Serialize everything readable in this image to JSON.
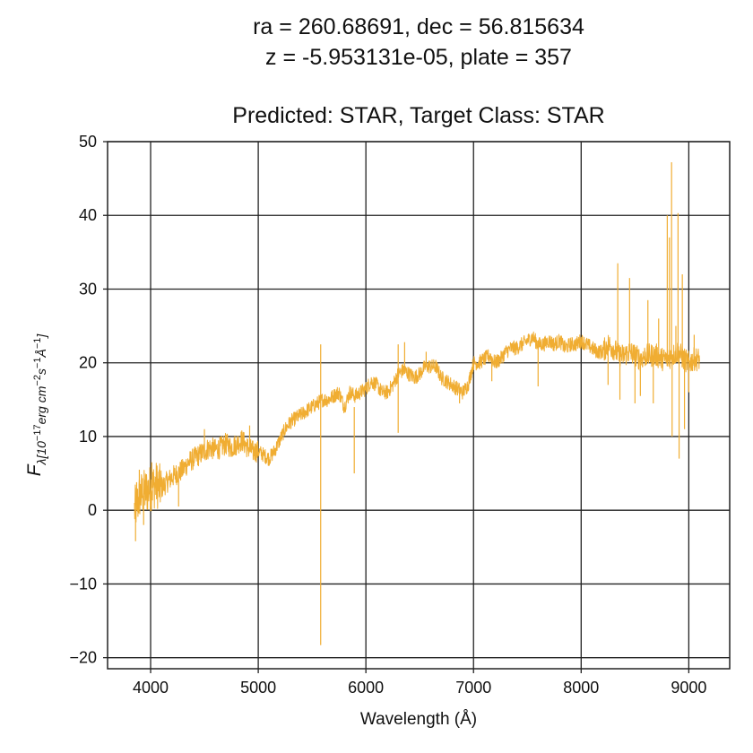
{
  "chart_data": {
    "type": "line",
    "title_lines": [
      "ra = 260.68691, dec = 56.815634",
      "z = -5.953131e-05, plate = 357"
    ],
    "subtitle": "Predicted: STAR, Target Class: STAR",
    "xlabel": "Wavelength (Å)",
    "ylabel": "F_λ[10⁻¹⁷erg cm⁻²s⁻¹Å⁻¹]",
    "ylabel_parts": {
      "main": "F",
      "sub": "λ[10",
      "exp1": "−17",
      "mid1": "erg cm",
      "exp2": "−2",
      "mid2": "s",
      "exp3": "−1",
      "mid3": "Å",
      "exp4": "−1",
      "end": "]"
    },
    "xlim": [
      3600,
      9380
    ],
    "ylim": [
      -21.5,
      50
    ],
    "x_ticks": [
      4000,
      5000,
      6000,
      7000,
      8000,
      9000
    ],
    "y_ticks": [
      -20,
      -10,
      0,
      10,
      20,
      30,
      40,
      50
    ],
    "grid": true,
    "color": "#f0ad32",
    "series": [
      {
        "x": [
          3850,
          3880,
          3900,
          3950,
          4000,
          4050,
          4100,
          4150,
          4200,
          4250,
          4300,
          4350,
          4400,
          4450,
          4500,
          4550,
          4600,
          4650,
          4700,
          4750,
          4800,
          4850,
          4900,
          4950,
          5000,
          5050,
          5100,
          5150,
          5200,
          5250,
          5300,
          5350,
          5400,
          5450,
          5500,
          5550,
          5600,
          5650,
          5700,
          5750,
          5800,
          5850,
          5900,
          5950,
          6000,
          6050,
          6100,
          6150,
          6200,
          6250,
          6300,
          6350,
          6400,
          6450,
          6500,
          6550,
          6600,
          6650,
          6700,
          6750,
          6800,
          6850,
          6900,
          6950,
          7000,
          7050,
          7100,
          7150,
          7200,
          7250,
          7300,
          7350,
          7400,
          7450,
          7500,
          7550,
          7600,
          7650,
          7700,
          7750,
          7800,
          7850,
          7900,
          7950,
          8000,
          8050,
          8100,
          8150,
          8200,
          8250,
          8300,
          8350,
          8400,
          8450,
          8500,
          8550,
          8600,
          8650,
          8700,
          8750,
          8800,
          8850,
          8900,
          8950,
          9000,
          9050,
          9100
        ],
        "y": [
          0,
          1,
          2,
          2.5,
          3,
          3.5,
          3,
          3.8,
          4.5,
          5,
          5.5,
          6.5,
          7,
          7.5,
          8,
          8.5,
          8.2,
          8.5,
          9,
          8.5,
          9,
          9.5,
          8.5,
          8,
          8,
          7.5,
          7,
          8,
          9.5,
          11,
          12,
          12.5,
          13,
          13.5,
          14,
          14.5,
          15,
          15,
          15.5,
          16,
          14,
          16,
          15.5,
          16,
          16.5,
          17.5,
          17,
          16,
          16,
          17,
          18.5,
          19,
          18.5,
          18,
          18.5,
          19.5,
          19.5,
          19.5,
          18,
          17.5,
          17,
          16.5,
          16,
          17,
          20,
          20,
          20.5,
          21,
          20,
          20.5,
          21.5,
          22,
          22,
          22.5,
          23,
          23.5,
          22.5,
          22.5,
          23,
          22.5,
          23,
          22,
          22.5,
          22.5,
          23,
          22.5,
          22,
          21.5,
          21.5,
          22.5,
          22,
          21,
          21,
          21.5,
          21,
          20.5,
          21,
          21,
          21,
          20.5,
          20.5,
          21,
          21.5,
          20.5,
          20,
          20.5,
          20.5
        ]
      }
    ],
    "spikes": [
      {
        "x": 3860,
        "y0": 0,
        "y1": -4.2
      },
      {
        "x": 3870,
        "y0": 0,
        "y1": 3.8
      },
      {
        "x": 3895,
        "y0": 1,
        "y1": 5.5
      },
      {
        "x": 3935,
        "y0": 2,
        "y1": -2
      },
      {
        "x": 4010,
        "y0": 3,
        "y1": 6.5
      },
      {
        "x": 4080,
        "y0": 3,
        "y1": 5.5
      },
      {
        "x": 4260,
        "y0": 5,
        "y1": 0.5
      },
      {
        "x": 4500,
        "y0": 8,
        "y1": 11
      },
      {
        "x": 4920,
        "y0": 8.5,
        "y1": 11.5
      },
      {
        "x": 5580,
        "y0": 15,
        "y1": 22.5
      },
      {
        "x": 5580,
        "y0": 15,
        "y1": -18.3
      },
      {
        "x": 5892,
        "y0": 14,
        "y1": 5
      },
      {
        "x": 6300,
        "y0": 18,
        "y1": 22.5
      },
      {
        "x": 6300,
        "y0": 18,
        "y1": 10.5
      },
      {
        "x": 6360,
        "y0": 18.5,
        "y1": 22.8
      },
      {
        "x": 6560,
        "y0": 19.5,
        "y1": 21.5
      },
      {
        "x": 6870,
        "y0": 16.5,
        "y1": 14.5
      },
      {
        "x": 7170,
        "y0": 20.5,
        "y1": 17.5
      },
      {
        "x": 7600,
        "y0": 23,
        "y1": 16.8
      },
      {
        "x": 8250,
        "y0": 22,
        "y1": 17
      },
      {
        "x": 8340,
        "y0": 22,
        "y1": 33.5
      },
      {
        "x": 8360,
        "y0": 22,
        "y1": 15
      },
      {
        "x": 8450,
        "y0": 21.5,
        "y1": 31.5
      },
      {
        "x": 8500,
        "y0": 21,
        "y1": 14.5
      },
      {
        "x": 8550,
        "y0": 21,
        "y1": 15.5
      },
      {
        "x": 8620,
        "y0": 21,
        "y1": 28.5
      },
      {
        "x": 8670,
        "y0": 21,
        "y1": 14.5
      },
      {
        "x": 8720,
        "y0": 21,
        "y1": 26
      },
      {
        "x": 8800,
        "y0": 21,
        "y1": 40
      },
      {
        "x": 8820,
        "y0": 21,
        "y1": 37
      },
      {
        "x": 8840,
        "y0": 21,
        "y1": 47.2
      },
      {
        "x": 8845,
        "y0": 21,
        "y1": 10
      },
      {
        "x": 8880,
        "y0": 21,
        "y1": 25
      },
      {
        "x": 8900,
        "y0": 21,
        "y1": 40.3
      },
      {
        "x": 8910,
        "y0": 21,
        "y1": 7
      },
      {
        "x": 8940,
        "y0": 21,
        "y1": 32
      },
      {
        "x": 8960,
        "y0": 21,
        "y1": 11
      },
      {
        "x": 9000,
        "y0": 20.5,
        "y1": 16
      },
      {
        "x": 9050,
        "y0": 20.5,
        "y1": 23.8
      }
    ]
  }
}
